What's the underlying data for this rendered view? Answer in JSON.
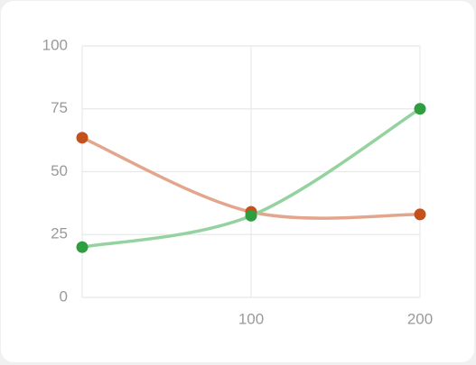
{
  "chart_data": {
    "type": "line",
    "x": [
      0,
      100,
      200
    ],
    "series": [
      {
        "color": "#e3a68c",
        "marker_color": "#c4501c",
        "values": [
          63.5,
          34,
          33
        ]
      },
      {
        "color": "#94d3a0",
        "marker_color": "#2f9e3e",
        "values": [
          20,
          32.5,
          75
        ]
      }
    ],
    "xlim": [
      0,
      200
    ],
    "xticks": [
      100,
      200
    ],
    "ylim": [
      0,
      100
    ],
    "yticks": [
      0,
      25,
      50,
      75,
      100
    ],
    "grid": true,
    "smooth": true
  }
}
